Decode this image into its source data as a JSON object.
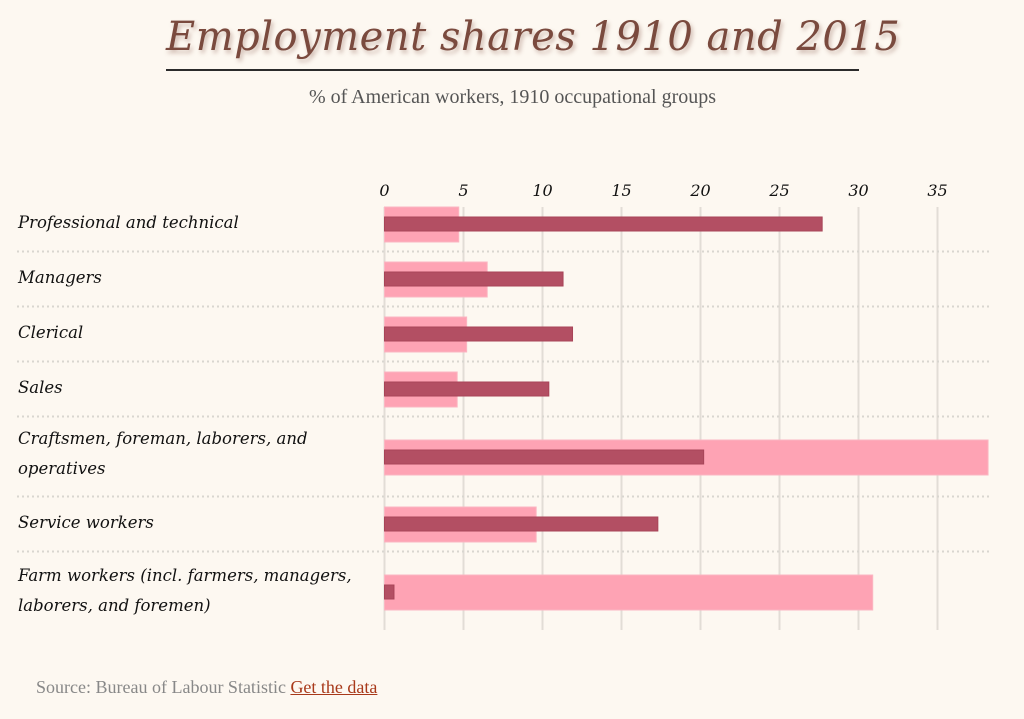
{
  "header": {
    "title": "Employment shares 1910 and 2015",
    "subtitle": "% of American workers, 1910 occupational groups"
  },
  "footer": {
    "source_text": "Source: Bureau of Labour Statistic",
    "link_label": "Get the data"
  },
  "colors": {
    "background": "#fdf8f1",
    "bar_1910": "#fea3b4",
    "bar_2015": "#b34f63",
    "gridline": "#e2ddd6",
    "divider": "#d9d6d0",
    "link": "#a8391a"
  },
  "chart_data": {
    "type": "bar",
    "orientation": "horizontal",
    "title": "Employment shares 1910 and 2015",
    "subtitle": "% of American workers, 1910 occupational groups",
    "xlabel": "",
    "ylabel": "",
    "xlim": [
      0,
      38.2
    ],
    "xticks": [
      0,
      5,
      10,
      15,
      20,
      25,
      30,
      35
    ],
    "xtick_labels": [
      "0",
      "5",
      "10",
      "15",
      "20",
      "25",
      "30",
      "35"
    ],
    "axis_position": "top",
    "grid": true,
    "categories": [
      "Professional and technical",
      "Managers",
      "Clerical",
      "Sales",
      "Craftsmen, foreman, laborers, and operatives",
      "Service workers",
      "Farm workers (incl. farmers, managers, laborers, and foremen)"
    ],
    "series": [
      {
        "name": "1910",
        "values": [
          4.7,
          6.5,
          5.2,
          4.6,
          38.2,
          9.6,
          30.9
        ]
      },
      {
        "name": "2015",
        "values": [
          27.7,
          11.3,
          11.9,
          10.4,
          20.2,
          17.3,
          0.6
        ]
      }
    ]
  }
}
